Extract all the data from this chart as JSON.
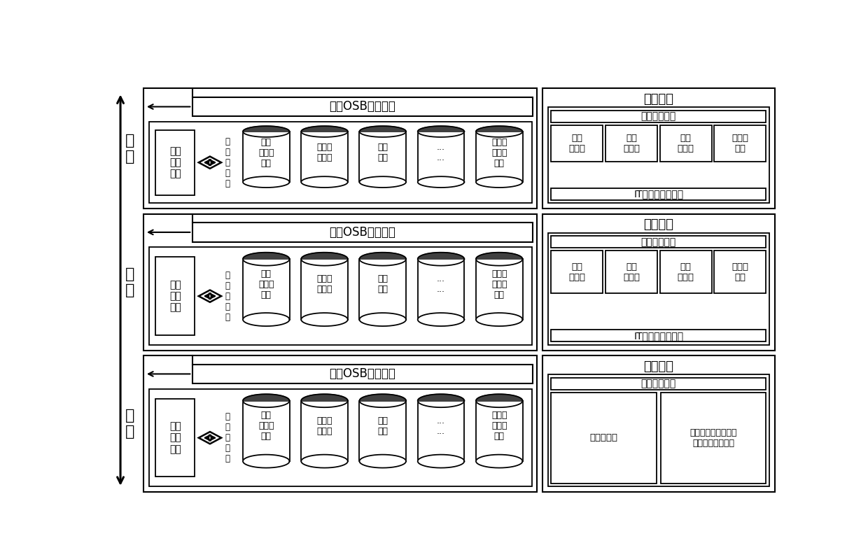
{
  "bg_color": "#ffffff",
  "rows": [
    {
      "label": "总\n调",
      "osb": "总调OSB服务总线"
    },
    {
      "label": "中\n调",
      "osb": "中调OSB服务总线"
    },
    {
      "label": "地\n调",
      "osb": "地调OSB服务总线"
    }
  ],
  "factory_label": "厂站\n模型\n数据",
  "sys_label": "系\n统\n数\n据\n据",
  "cyl_labels": [
    "调度\n自动化\n数据",
    "继电保\n护信息",
    "电能\n计量",
    "...\n...",
    "调度运\n行管理\n数据"
  ],
  "dc_title": "数据中心",
  "obj_reg": "对象注册中心",
  "boxes4": [
    "数据\n获取层",
    "数据\n整合层",
    "数据\n存储层",
    "应用服\n务层"
  ],
  "it_text": "IT基础设施服务层",
  "didi_box_left": "数据整合层",
  "didi_box_right": "数据服务层（模型、\n图形、运行数据）"
}
